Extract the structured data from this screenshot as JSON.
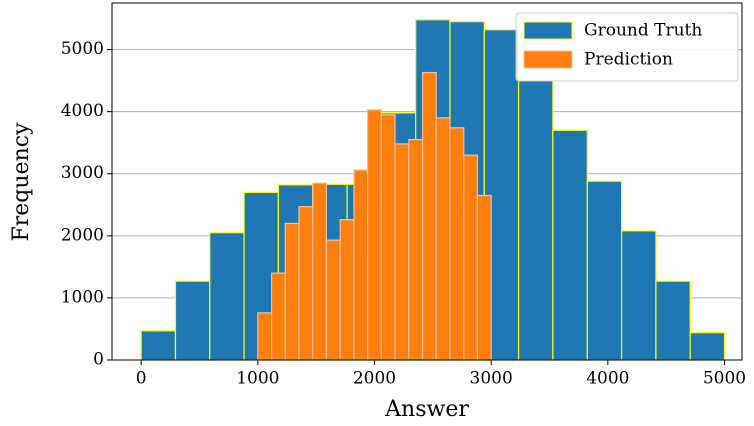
{
  "chart_data": {
    "type": "histogram",
    "x_label": "Answer",
    "y_label": "Frequency",
    "xlim": [
      -250,
      5150
    ],
    "ylim": [
      0,
      5750
    ],
    "xticks": [
      0,
      1000,
      2000,
      3000,
      4000,
      5000
    ],
    "yticks": [
      0,
      1000,
      2000,
      3000,
      4000,
      5000
    ],
    "grid": "y",
    "legend_loc": "upper right",
    "edgecolor": "#ffff00",
    "series": [
      {
        "name": "Ground Truth",
        "color": "#1f77b4",
        "bins": [
          0,
          294,
          588,
          882,
          1176,
          1471,
          1765,
          2059,
          2353,
          2647,
          2941,
          3235,
          3529,
          3824,
          4118,
          4412,
          4706,
          5000
        ],
        "values": [
          470,
          1270,
          2050,
          2700,
          2820,
          2830,
          2830,
          3980,
          5480,
          5450,
          5320,
          4500,
          3700,
          2880,
          2080,
          1270,
          440
        ]
      },
      {
        "name": "Prediction",
        "color": "#ff7f0e",
        "bins": [
          1000,
          1118,
          1235,
          1353,
          1471,
          1588,
          1706,
          1824,
          1941,
          2059,
          2176,
          2294,
          2412,
          2529,
          2647,
          2765,
          2882,
          3000
        ],
        "values": [
          760,
          1400,
          2200,
          2470,
          2850,
          1930,
          2260,
          3060,
          4030,
          3950,
          3480,
          3550,
          4630,
          3900,
          3740,
          3300,
          2650
        ]
      }
    ]
  }
}
